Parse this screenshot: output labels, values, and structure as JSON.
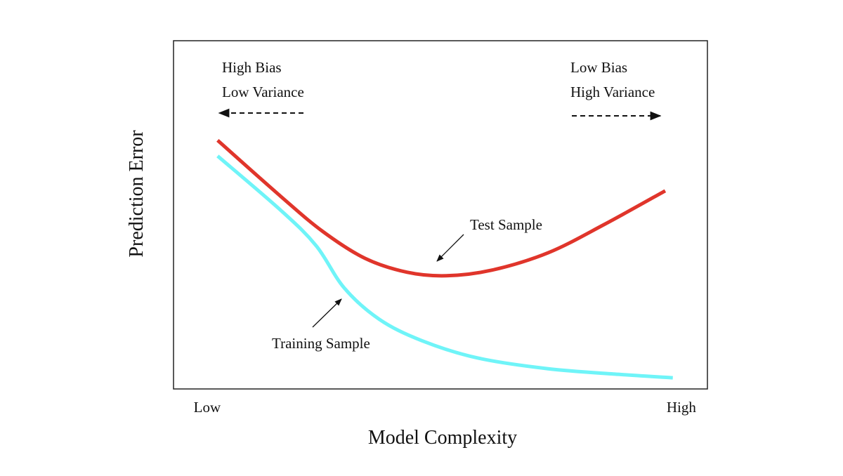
{
  "chart_data": {
    "type": "line",
    "x_label": "Model Complexity",
    "y_label": "Prediction Error",
    "xlim": [
      -0.71,
      10.55
    ],
    "ylim": [
      0,
      10
    ],
    "xticks": [
      {
        "value": 0,
        "label": "Low"
      },
      {
        "value": 10,
        "label": "High"
      }
    ],
    "series": [
      {
        "name": "Test Sample",
        "color": "#e0352b",
        "x": [
          0.22,
          1.56,
          2.44,
          3.33,
          4.22,
          5.04,
          6.0,
          7.19,
          8.37,
          9.66
        ],
        "values": [
          7.14,
          5.52,
          4.52,
          3.75,
          3.35,
          3.25,
          3.41,
          3.91,
          4.72,
          5.69
        ]
      },
      {
        "name": "Training Sample",
        "color": "#6ff4f8",
        "x": [
          0.22,
          1.56,
          2.3,
          2.89,
          3.63,
          4.52,
          5.7,
          7.19,
          8.67,
          9.82
        ],
        "values": [
          6.69,
          5.12,
          4.11,
          2.9,
          2.0,
          1.39,
          0.89,
          0.58,
          0.42,
          0.32
        ]
      }
    ],
    "annotations": [
      "High Bias",
      "Low Variance",
      "Low Bias",
      "High Variance"
    ]
  }
}
